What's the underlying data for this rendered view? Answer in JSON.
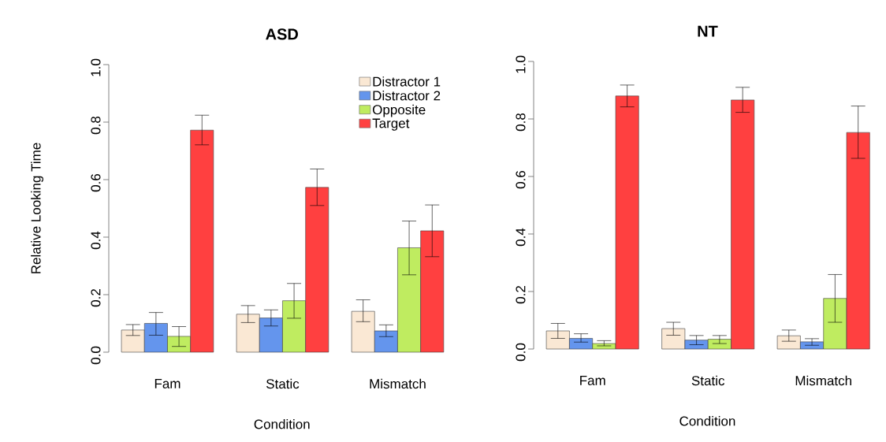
{
  "chart_data": [
    {
      "type": "bar",
      "title": "ASD",
      "xlabel": "Condition",
      "ylabel": "Relative Looking Time",
      "categories": [
        "Fam",
        "Static",
        "Mismatch"
      ],
      "series": [
        {
          "name": "Distractor 1",
          "color": "#fae8d4",
          "values": [
            0.077,
            0.132,
            0.142
          ],
          "errors": [
            [
              0.058,
              0.096
            ],
            [
              0.103,
              0.162
            ],
            [
              0.106,
              0.182
            ]
          ]
        },
        {
          "name": "Distractor 2",
          "color": "#6495ed",
          "values": [
            0.1,
            0.119,
            0.074
          ],
          "errors": [
            [
              0.059,
              0.138
            ],
            [
              0.091,
              0.147
            ],
            [
              0.054,
              0.095
            ]
          ]
        },
        {
          "name": "Opposite",
          "color": "#bfec60",
          "values": [
            0.055,
            0.179,
            0.363
          ],
          "errors": [
            [
              0.02,
              0.089
            ],
            [
              0.118,
              0.239
            ],
            [
              0.269,
              0.456
            ]
          ]
        },
        {
          "name": "Target",
          "color": "#ff4040",
          "values": [
            0.772,
            0.573,
            0.422
          ],
          "errors": [
            [
              0.721,
              0.824
            ],
            [
              0.51,
              0.637
            ],
            [
              0.332,
              0.512
            ]
          ]
        }
      ],
      "ylim": [
        0,
        1
      ],
      "yticks": [
        {
          "value": 0,
          "label": "0.0"
        },
        {
          "value": 0.2,
          "label": "0.2"
        },
        {
          "value": 0.4,
          "label": "0.4"
        },
        {
          "value": 0.6,
          "label": "0.6"
        },
        {
          "value": 0.8,
          "label": "0.8"
        },
        {
          "value": 1,
          "label": "1.0"
        }
      ],
      "legend": "top right"
    },
    {
      "type": "bar",
      "title": "NT",
      "xlabel": "Condition",
      "categories": [
        "Fam",
        "Static",
        "Mismatch"
      ],
      "series": [
        {
          "color": "#fae8d4",
          "values": [
            0.063,
            0.071,
            0.046
          ],
          "errors": [
            [
              0.037,
              0.089
            ],
            [
              0.048,
              0.093
            ],
            [
              0.027,
              0.066
            ]
          ]
        },
        {
          "color": "#6495ed",
          "values": [
            0.037,
            0.031,
            0.025
          ],
          "errors": [
            [
              0.024,
              0.053
            ],
            [
              0.015,
              0.047
            ],
            [
              0.013,
              0.036
            ]
          ]
        },
        {
          "color": "#bfec60",
          "values": [
            0.019,
            0.034,
            0.176
          ],
          "errors": [
            [
              0.011,
              0.029
            ],
            [
              0.019,
              0.047
            ],
            [
              0.093,
              0.259
            ]
          ]
        },
        {
          "color": "#ff4040",
          "values": [
            0.88,
            0.866,
            0.753
          ],
          "errors": [
            [
              0.842,
              0.918
            ],
            [
              0.823,
              0.91
            ],
            [
              0.663,
              0.845
            ]
          ]
        }
      ],
      "ylim": [
        0,
        1
      ],
      "yticks": [
        {
          "value": 0,
          "label": "0.0"
        },
        {
          "value": 0.2,
          "label": "0.2"
        },
        {
          "value": 0.4,
          "label": "0.4"
        },
        {
          "value": 0.6,
          "label": "0.6"
        },
        {
          "value": 0.8,
          "label": "0.8"
        },
        {
          "value": 1,
          "label": "1.0"
        }
      ]
    }
  ]
}
